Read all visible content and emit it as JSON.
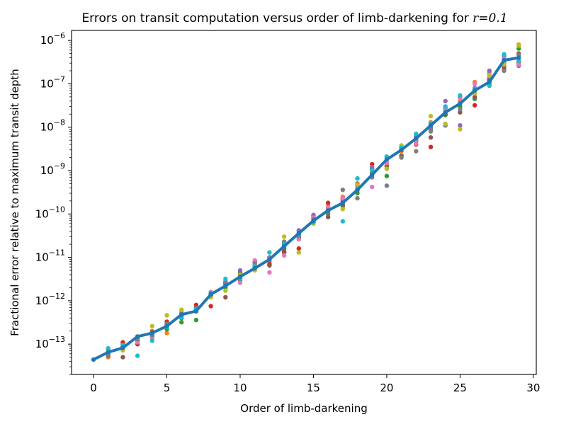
{
  "chart_data": {
    "type": "scatter",
    "title_prefix": "Errors on transit computation versus order of limb-darkening for ",
    "title_var": "r",
    "title_suffix": "=0.1",
    "xlabel": "Order of limb-darkening",
    "ylabel": "Fractional error relative to maximum transit depth",
    "xlim": [
      -1.5,
      30.2
    ],
    "ylim": [
      2e-14,
      1.7e-06
    ],
    "yscale": "log",
    "grid": false,
    "x_ticks": [
      0,
      5,
      10,
      15,
      20,
      25,
      30
    ],
    "x_tick_labels": [
      "0",
      "5",
      "10",
      "15",
      "20",
      "25",
      "30"
    ],
    "y_tick_exponents": [
      -13,
      -12,
      -11,
      -10,
      -9,
      -8,
      -7,
      -6
    ],
    "y_tick_base": "10",
    "y_tick_minus": "−",
    "line_color": "#1f77b4",
    "series": [
      {
        "color": "#1f77b4",
        "x": [
          0,
          1,
          2,
          3,
          4,
          5,
          6,
          7,
          8,
          9,
          10,
          11,
          12,
          13,
          14,
          15,
          16,
          17,
          18,
          19,
          20,
          21,
          22,
          23,
          24,
          25,
          26,
          27,
          28,
          29
        ],
        "y": [
          4.4e-14,
          6.5e-14,
          8.2e-14,
          1.5e-13,
          1.8e-13,
          2.6e-13,
          4.8e-13,
          5.8e-13,
          1.4e-12,
          2.2e-12,
          3.6e-12,
          5.6e-12,
          9e-12,
          1.8e-11,
          3.6e-11,
          7e-11,
          1.2e-10,
          1.8e-10,
          3.6e-10,
          8e-10,
          1.8e-09,
          3e-09,
          5.5e-09,
          1.1e-08,
          2.2e-08,
          3.5e-08,
          7e-08,
          1.1e-07,
          3.5e-07,
          4e-07
        ]
      },
      {
        "color": "#ff7f0e",
        "x": [
          1,
          2,
          3,
          4,
          5,
          6,
          7,
          8,
          9,
          10,
          11,
          12,
          13,
          14,
          15,
          16,
          17,
          18,
          19,
          20,
          21,
          22,
          23,
          24,
          25,
          26,
          27,
          28,
          29
        ],
        "y": [
          5e-14,
          9e-14,
          1.3e-13,
          2e-13,
          1.8e-13,
          5.5e-13,
          6.5e-13,
          1.2e-12,
          2.5e-12,
          4e-12,
          6e-12,
          8e-12,
          2e-11,
          4e-11,
          8e-11,
          1.5e-10,
          2.5e-10,
          4e-10,
          9e-10,
          1.2e-09,
          2.8e-09,
          5e-09,
          1.3e-08,
          2.5e-08,
          4e-08,
          1.1e-07,
          1.8e-07,
          4e-07,
          8e-07
        ]
      },
      {
        "color": "#2ca02c",
        "x": [
          1,
          2,
          3,
          4,
          5,
          6,
          7,
          8,
          9,
          10,
          11,
          12,
          13,
          14,
          15,
          16,
          17,
          18,
          19,
          20,
          21,
          22,
          23,
          24,
          25,
          26,
          27,
          28,
          29
        ],
        "y": [
          7e-14,
          1e-13,
          1.2e-13,
          1.5e-13,
          2.2e-13,
          3.2e-13,
          3.6e-13,
          1.3e-12,
          2e-12,
          4.5e-12,
          5.5e-12,
          1e-11,
          1.6e-11,
          3e-11,
          9e-11,
          1e-10,
          1.5e-10,
          3e-10,
          1.1e-09,
          7.5e-10,
          2.2e-09,
          6e-09,
          9e-09,
          1.9e-08,
          3e-08,
          4.5e-08,
          1.2e-07,
          3e-07,
          6.5e-07
        ]
      },
      {
        "color": "#d62728",
        "x": [
          1,
          2,
          3,
          4,
          5,
          6,
          7,
          8,
          9,
          10,
          11,
          12,
          13,
          14,
          15,
          16,
          17,
          18,
          19,
          20,
          21,
          22,
          23,
          24,
          25,
          26,
          27,
          28,
          29
        ],
        "y": [
          6e-14,
          1.1e-13,
          1e-13,
          1.6e-13,
          3.3e-13,
          4e-13,
          8e-13,
          7.5e-13,
          2.6e-12,
          3e-12,
          8e-12,
          7e-12,
          1.3e-11,
          1.6e-11,
          8e-11,
          1.8e-10,
          2e-10,
          5e-10,
          1.4e-09,
          1.5e-09,
          3.2e-09,
          4e-09,
          3.5e-09,
          2.8e-08,
          5e-08,
          3.2e-08,
          1.2e-07,
          2.2e-07,
          3e-07
        ]
      },
      {
        "color": "#9467bd",
        "x": [
          1,
          2,
          3,
          4,
          5,
          6,
          7,
          8,
          9,
          10,
          11,
          12,
          13,
          14,
          15,
          16,
          17,
          18,
          19,
          20,
          21,
          22,
          23,
          24,
          25,
          26,
          27,
          28,
          29
        ],
        "y": [
          7.5e-14,
          9e-14,
          1.4e-13,
          1.7e-13,
          2.8e-13,
          5e-13,
          6e-13,
          1.5e-12,
          2.8e-12,
          5e-12,
          7.5e-12,
          1e-11,
          2.2e-11,
          4.2e-11,
          9.5e-11,
          1.3e-10,
          2.2e-10,
          4.5e-10,
          1.2e-09,
          2e-09,
          3.5e-09,
          6e-09,
          1e-08,
          4e-08,
          1.1e-08,
          8e-08,
          2e-07,
          4.5e-07,
          2.6e-07
        ]
      },
      {
        "color": "#8c564b",
        "x": [
          1,
          2,
          3,
          4,
          5,
          6,
          7,
          8,
          9,
          10,
          11,
          12,
          13,
          14,
          15,
          16,
          17,
          18,
          19,
          20,
          21,
          22,
          23,
          24,
          25,
          26,
          27,
          28,
          29
        ],
        "y": [
          5.5e-14,
          5e-14,
          1.2e-13,
          1.9e-13,
          3e-13,
          4.5e-13,
          7e-13,
          1.3e-12,
          1.2e-12,
          4.2e-12,
          6.5e-12,
          6.5e-12,
          1.4e-11,
          2.8e-11,
          7e-11,
          8.5e-11,
          1.6e-10,
          3.5e-10,
          8.5e-10,
          1.3e-09,
          2.2e-09,
          4.8e-09,
          5.8e-09,
          2e-08,
          2.2e-08,
          5e-08,
          1.3e-07,
          2.5e-07,
          5e-07
        ]
      },
      {
        "color": "#e377c2",
        "x": [
          1,
          2,
          3,
          4,
          5,
          6,
          7,
          8,
          9,
          10,
          11,
          12,
          13,
          14,
          15,
          16,
          17,
          18,
          19,
          20,
          21,
          22,
          23,
          24,
          25,
          26,
          27,
          28,
          29
        ],
        "y": [
          6.2e-14,
          8.5e-14,
          1.1e-13,
          1.4e-13,
          2.7e-13,
          5.2e-13,
          6.2e-13,
          1.6e-12,
          2.3e-12,
          2.6e-12,
          8.5e-12,
          4.5e-12,
          1.1e-11,
          2.6e-11,
          8.2e-11,
          1.4e-10,
          2.3e-10,
          3.8e-10,
          4.2e-10,
          1.5e-09,
          3e-09,
          4.2e-09,
          1.1e-08,
          2.6e-08,
          4.6e-08,
          1e-07,
          1.5e-07,
          3.8e-07,
          2.8e-07
        ]
      },
      {
        "color": "#7f7f7f",
        "x": [
          1,
          2,
          3,
          4,
          5,
          6,
          7,
          8,
          9,
          10,
          11,
          12,
          13,
          14,
          15,
          16,
          17,
          18,
          19,
          20,
          21,
          22,
          23,
          24,
          25,
          26,
          27,
          28,
          29
        ],
        "y": [
          5.8e-14,
          8.8e-14,
          1.3e-13,
          1.6e-13,
          2.9e-13,
          4.9e-13,
          6.6e-13,
          1.5e-12,
          2.4e-12,
          3.6e-12,
          7.2e-12,
          9e-12,
          2.3e-11,
          3.2e-11,
          7.5e-11,
          1.1e-10,
          3.6e-10,
          2.3e-10,
          7e-10,
          4.5e-10,
          2e-09,
          2.8e-09,
          8e-09,
          1.1e-08,
          2.6e-08,
          7e-08,
          9.5e-08,
          2e-07,
          4.6e-07
        ]
      },
      {
        "color": "#bcbd22",
        "x": [
          1,
          2,
          3,
          4,
          5,
          6,
          7,
          8,
          9,
          10,
          11,
          12,
          13,
          14,
          15,
          16,
          17,
          18,
          19,
          20,
          21,
          22,
          23,
          24,
          25,
          26,
          27,
          28,
          29
        ],
        "y": [
          6.8e-14,
          7.2e-14,
          1.5e-13,
          2.6e-13,
          4.6e-13,
          6.2e-13,
          5.6e-13,
          1.2e-12,
          1.7e-12,
          4e-12,
          5e-12,
          9.2e-12,
          3e-11,
          1.3e-11,
          6e-11,
          1.2e-10,
          1.3e-10,
          4.8e-10,
          1e-09,
          1.1e-09,
          3.8e-09,
          5.2e-09,
          1.8e-08,
          1.2e-08,
          9e-09,
          6e-08,
          1.6e-07,
          2.8e-07,
          7.6e-07
        ]
      },
      {
        "color": "#17becf",
        "x": [
          1,
          2,
          3,
          4,
          5,
          6,
          7,
          8,
          9,
          10,
          11,
          12,
          13,
          14,
          15,
          16,
          17,
          18,
          19,
          20,
          21,
          22,
          23,
          24,
          25,
          26,
          27,
          28,
          29
        ],
        "y": [
          8e-14,
          9.5e-14,
          5.4e-14,
          1.2e-13,
          2.5e-13,
          4.1e-13,
          6.4e-13,
          1.5e-12,
          3.2e-12,
          3.2e-12,
          6.2e-12,
          1.3e-11,
          2e-11,
          3.4e-11,
          6.5e-11,
          1.2e-10,
          6.8e-11,
          6.6e-10,
          1e-09,
          2.1e-09,
          3.4e-09,
          7e-09,
          1.2e-08,
          3e-08,
          5.4e-08,
          7.5e-08,
          9e-08,
          4.8e-07,
          3.4e-07
        ]
      }
    ]
  }
}
